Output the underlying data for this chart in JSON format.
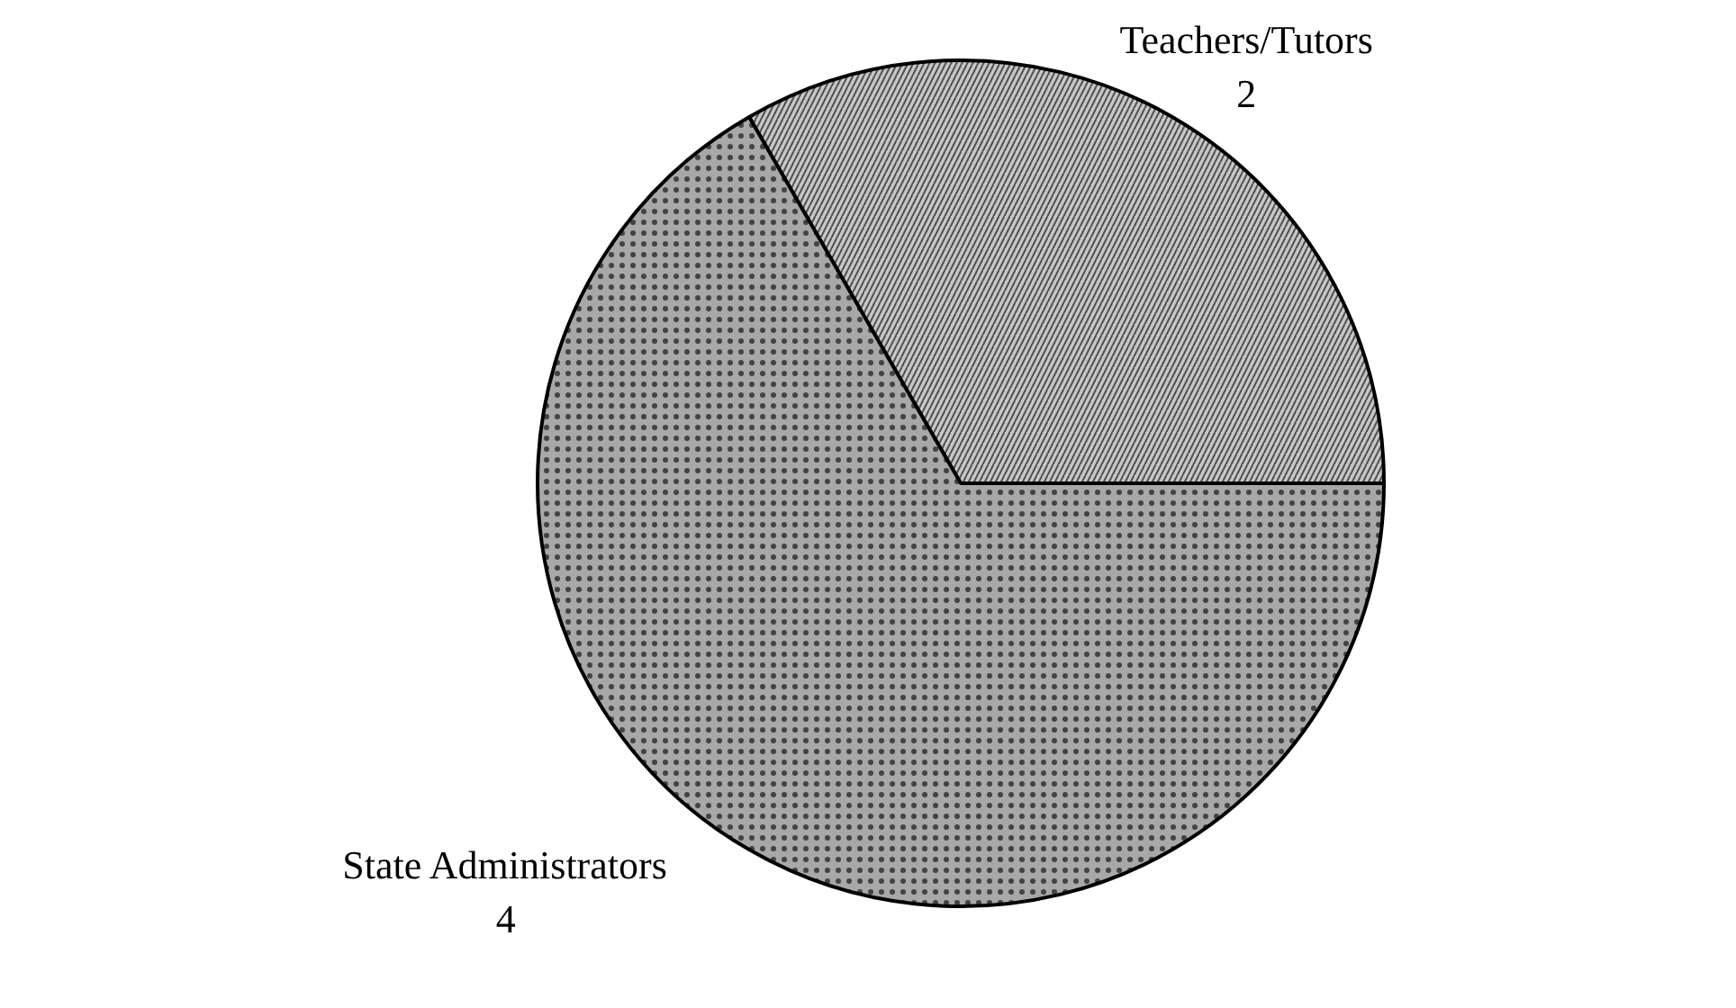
{
  "chart_data": {
    "type": "pie",
    "categories": [
      "Teachers/Tutors",
      "State Administrators"
    ],
    "values": [
      2,
      4
    ],
    "colors": [
      "#c8c8c8",
      "#a8a8a8"
    ],
    "data_labels": true
  }
}
